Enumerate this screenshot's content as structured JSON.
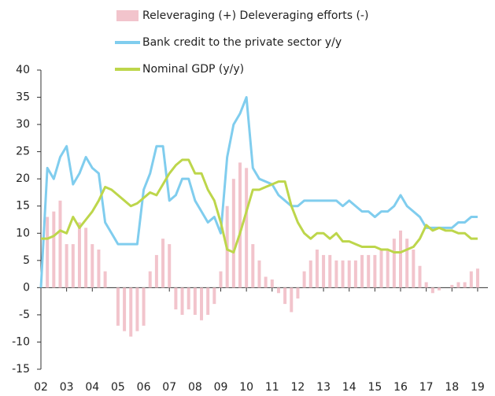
{
  "chart_data": {
    "type": "combo",
    "x": [
      2,
      2.25,
      2.5,
      2.75,
      3,
      3.25,
      3.5,
      3.75,
      4,
      4.25,
      4.5,
      4.75,
      5,
      5.25,
      5.5,
      5.75,
      6,
      6.25,
      6.5,
      6.75,
      7,
      7.25,
      7.5,
      7.75,
      8,
      8.25,
      8.5,
      8.75,
      9,
      9.25,
      9.5,
      9.75,
      10,
      10.25,
      10.5,
      10.75,
      11,
      11.25,
      11.5,
      11.75,
      12,
      12.25,
      12.5,
      12.75,
      13,
      13.25,
      13.5,
      13.75,
      14,
      14.25,
      14.5,
      14.75,
      15,
      15.25,
      15.5,
      15.75,
      16,
      16.25,
      16.5,
      16.75,
      17,
      17.25,
      17.5,
      17.75,
      18,
      18.25,
      18.5,
      18.75,
      19
    ],
    "series": [
      {
        "name": "Releveraging (+) Deleveraging efforts (-)",
        "type": "bar",
        "color": "#f2c4cc",
        "values": [
          0,
          13,
          14,
          16,
          8,
          8,
          12,
          11,
          8,
          7,
          3,
          0,
          -7,
          -8,
          -9,
          -8,
          -7,
          3,
          6,
          9,
          8,
          -4,
          -5,
          -4,
          -5,
          -6,
          -5,
          -3,
          3,
          15,
          20,
          23,
          22,
          8,
          5,
          2,
          1.5,
          -1,
          -3,
          -4.5,
          -2,
          3,
          5,
          7,
          6,
          6,
          5,
          5,
          5,
          5,
          6,
          6,
          6,
          7,
          7,
          9,
          10.5,
          9,
          7,
          4,
          1,
          -1,
          -0.5,
          0,
          0.5,
          1,
          1,
          3,
          3.5
        ]
      },
      {
        "name": "Bank credit to the private sector y/y",
        "type": "line",
        "color": "#80cdee",
        "values": [
          0,
          22,
          20,
          24,
          26,
          19,
          21,
          24,
          22,
          21,
          12,
          10,
          8,
          8,
          8,
          8,
          18,
          21,
          26,
          26,
          16,
          17,
          20,
          20,
          16,
          14,
          12,
          13,
          10,
          24,
          30,
          32,
          35,
          22,
          20,
          19.5,
          19,
          17,
          16,
          15,
          15,
          16,
          16,
          16,
          16,
          16,
          16,
          15,
          16,
          15,
          14,
          14,
          13,
          14,
          14,
          15,
          17,
          15,
          14,
          13,
          11,
          11,
          11,
          11,
          11,
          12,
          12,
          13,
          13
        ]
      },
      {
        "name": "Nominal GDP (y/y)",
        "type": "line",
        "color": "#bdd64b",
        "values": [
          9,
          9,
          9.5,
          10.5,
          10,
          13,
          11,
          12.5,
          14,
          16,
          18.5,
          18,
          17,
          16,
          15,
          15.5,
          16.5,
          17.5,
          17,
          19,
          21,
          22.5,
          23.5,
          23.5,
          21,
          21,
          18,
          16,
          12,
          7,
          6.5,
          10,
          14,
          18,
          18,
          18.5,
          19,
          19.5,
          19.5,
          15,
          12,
          10,
          9,
          10,
          10,
          9,
          10,
          8.5,
          8.5,
          8,
          7.5,
          7.5,
          7.5,
          7,
          7,
          6.5,
          6.5,
          7,
          7.5,
          9,
          11.5,
          10.5,
          11,
          10.5,
          10.5,
          10,
          10,
          9,
          9
        ]
      }
    ],
    "xlim": [
      2,
      19.4
    ],
    "xticks": [
      {
        "value": 2,
        "label": "02"
      },
      {
        "value": 3,
        "label": "03"
      },
      {
        "value": 4,
        "label": "04"
      },
      {
        "value": 5,
        "label": "05"
      },
      {
        "value": 6,
        "label": "06"
      },
      {
        "value": 7,
        "label": "07"
      },
      {
        "value": 8,
        "label": "08"
      },
      {
        "value": 9,
        "label": "09"
      },
      10,
      11,
      12,
      13,
      14,
      15,
      16,
      17,
      18,
      19
    ],
    "ylim": [
      -15,
      40
    ],
    "yticks": [
      -15,
      -10,
      -5,
      0,
      5,
      10,
      15,
      20,
      25,
      30,
      35,
      40
    ]
  }
}
